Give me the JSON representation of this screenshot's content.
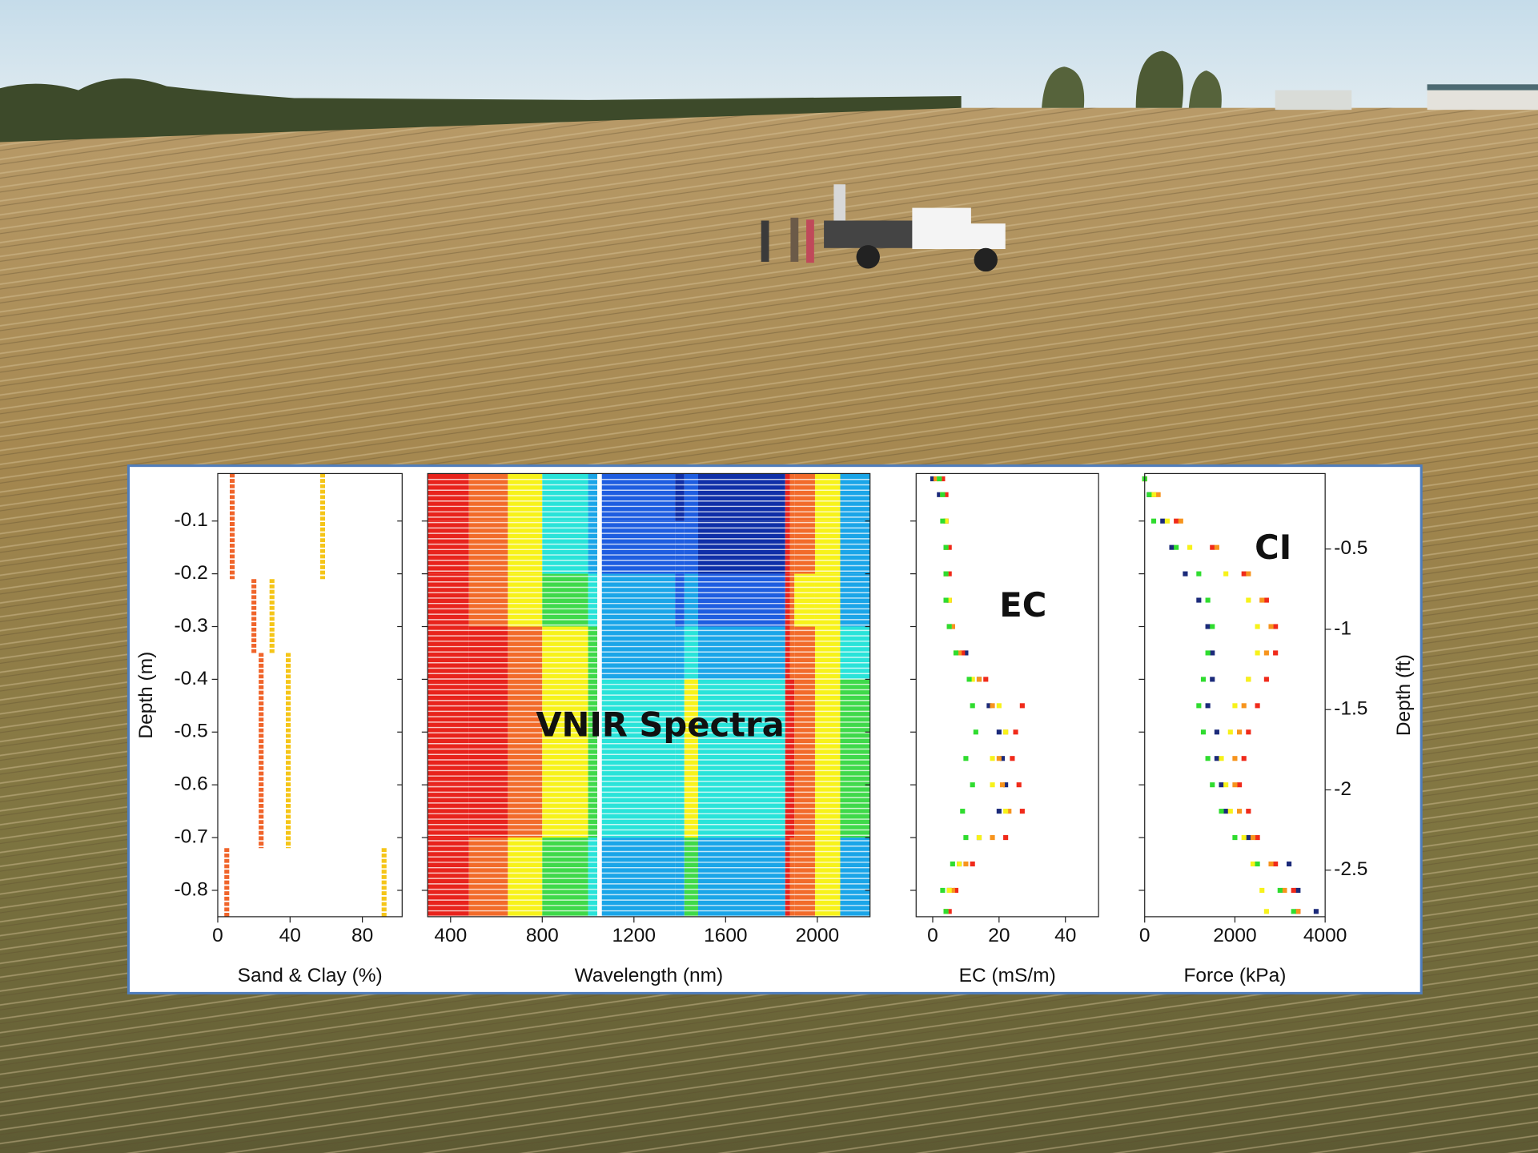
{
  "chart_data": [
    {
      "type": "step",
      "xlabel": "Sand & Clay (%)",
      "ylabel": "Depth (m)",
      "y_edges": [
        -0.01,
        -0.21,
        -0.35,
        -0.72,
        -0.85
      ],
      "series": [
        {
          "color": "#f0642a",
          "values": [
            8,
            20,
            24,
            5
          ]
        },
        {
          "color": "#f5c518",
          "values": [
            58,
            30,
            39,
            92
          ]
        }
      ],
      "xlim": [
        0,
        102
      ],
      "xticks": [
        0,
        40,
        80
      ],
      "ylim": [
        -0.85,
        -0.01
      ],
      "yticks": [
        -0.1,
        -0.2,
        -0.3,
        -0.4,
        -0.5,
        -0.6,
        -0.7,
        -0.8
      ]
    },
    {
      "type": "heatmap",
      "xlabel": "Wavelength (nm)",
      "annotation": "VNIR Spectra",
      "colormap": [
        "#e8231c",
        "#f26b2a",
        "#f7f21a",
        "#3fd94a",
        "#29e3d9",
        "#1aa5e8",
        "#1e5de0",
        "#0f2fa8"
      ],
      "x_bins": [
        300,
        480,
        650,
        800,
        1000,
        1040,
        1060,
        1380,
        1420,
        1480,
        1860,
        1880,
        1900,
        1990,
        2100,
        2230
      ],
      "y_bins": [
        -0.01,
        -0.1,
        -0.2,
        -0.3,
        -0.4,
        -0.5,
        -0.6,
        -0.7,
        -0.85
      ],
      "values": [
        [
          0,
          1,
          2,
          4,
          5,
          null,
          6,
          7,
          6,
          7,
          0,
          1,
          1,
          2,
          5
        ],
        [
          0,
          1,
          2,
          4,
          5,
          null,
          6,
          6,
          6,
          7,
          0,
          1,
          1,
          2,
          5
        ],
        [
          0,
          1,
          2,
          3,
          4,
          null,
          5,
          6,
          5,
          6,
          0,
          1,
          2,
          2,
          5
        ],
        [
          0,
          0,
          1,
          2,
          3,
          null,
          5,
          5,
          4,
          5,
          0,
          1,
          1,
          2,
          4
        ],
        [
          0,
          0,
          1,
          2,
          3,
          null,
          4,
          4,
          2,
          4,
          0,
          0,
          1,
          2,
          3
        ],
        [
          0,
          0,
          1,
          2,
          3,
          null,
          4,
          4,
          2,
          4,
          0,
          0,
          1,
          2,
          3
        ],
        [
          0,
          0,
          1,
          2,
          3,
          null,
          4,
          4,
          2,
          4,
          0,
          0,
          1,
          2,
          3
        ],
        [
          0,
          1,
          2,
          3,
          4,
          null,
          5,
          5,
          3,
          5,
          0,
          1,
          1,
          2,
          5
        ]
      ],
      "xlim": [
        300,
        2230
      ],
      "xticks": [
        400,
        800,
        1200,
        1600,
        2000
      ],
      "ylim": [
        -0.85,
        -0.01
      ],
      "yticks": [
        -0.1,
        -0.2,
        -0.3,
        -0.4,
        -0.5,
        -0.6,
        -0.7,
        -0.8
      ]
    },
    {
      "type": "scatter",
      "xlabel": "EC (mS/m)",
      "annotation": "EC",
      "y": [
        -0.02,
        -0.05,
        -0.1,
        -0.15,
        -0.2,
        -0.25,
        -0.3,
        -0.35,
        -0.4,
        -0.45,
        -0.5,
        -0.55,
        -0.6,
        -0.65,
        -0.7,
        -0.75,
        -0.8,
        -0.84
      ],
      "series": [
        {
          "color": "#1b2a7a",
          "values": [
            0,
            2,
            4,
            4,
            4,
            4,
            5,
            10,
            14,
            17,
            20,
            21,
            22,
            20,
            14,
            8,
            5,
            4
          ]
        },
        {
          "color": "#f02a1a",
          "values": [
            3,
            4,
            4,
            5,
            5,
            5,
            6,
            9,
            16,
            27,
            25,
            24,
            26,
            27,
            22,
            12,
            7,
            5
          ]
        },
        {
          "color": "#f7941d",
          "values": [
            1,
            3,
            4,
            4,
            4,
            5,
            6,
            8,
            14,
            18,
            22,
            20,
            21,
            23,
            18,
            10,
            6,
            4
          ]
        },
        {
          "color": "#f7f21a",
          "values": [
            2,
            3,
            4,
            4,
            4,
            5,
            5,
            7,
            12,
            20,
            22,
            18,
            18,
            22,
            14,
            8,
            5,
            4
          ]
        },
        {
          "color": "#2fdc2f",
          "values": [
            2,
            3,
            3,
            4,
            4,
            4,
            5,
            7,
            11,
            12,
            13,
            10,
            12,
            9,
            10,
            6,
            3,
            4
          ]
        }
      ],
      "xlim": [
        -5,
        50
      ],
      "xticks": [
        0,
        20,
        40
      ],
      "ylim": [
        -0.85,
        -0.01
      ],
      "yticks": [
        -0.1,
        -0.2,
        -0.3,
        -0.4,
        -0.5,
        -0.6,
        -0.7,
        -0.8
      ]
    },
    {
      "type": "scatter",
      "xlabel": "Force (kPa)",
      "annotation": "CI",
      "y2label": "Depth (ft)",
      "y": [
        -0.02,
        -0.05,
        -0.1,
        -0.15,
        -0.2,
        -0.25,
        -0.3,
        -0.35,
        -0.4,
        -0.45,
        -0.5,
        -0.55,
        -0.6,
        -0.65,
        -0.7,
        -0.75,
        -0.8,
        -0.84
      ],
      "series": [
        {
          "color": "#1b2a7a",
          "values": [
            0,
            100,
            400,
            600,
            900,
            1200,
            1400,
            1500,
            1500,
            1400,
            1600,
            1600,
            1700,
            1800,
            2300,
            3200,
            3400,
            3800
          ]
        },
        {
          "color": "#f02a1a",
          "values": [
            0,
            200,
            700,
            1500,
            2200,
            2700,
            2900,
            2900,
            2700,
            2500,
            2300,
            2200,
            2100,
            2300,
            2500,
            2900,
            3300,
            3400
          ]
        },
        {
          "color": "#f7941d",
          "values": [
            0,
            300,
            800,
            1600,
            2300,
            2600,
            2800,
            2700,
            2300,
            2200,
            2100,
            2000,
            2000,
            2100,
            2400,
            2800,
            3100,
            3400
          ]
        },
        {
          "color": "#f7f21a",
          "values": [
            0,
            200,
            500,
            1000,
            1800,
            2300,
            2500,
            2500,
            2300,
            2000,
            1900,
            1700,
            1800,
            1900,
            2200,
            2400,
            2600,
            2700
          ]
        },
        {
          "color": "#2fdc2f",
          "values": [
            0,
            100,
            200,
            700,
            1200,
            1400,
            1500,
            1400,
            1300,
            1200,
            1300,
            1400,
            1500,
            1700,
            2000,
            2500,
            3000,
            3300
          ]
        }
      ],
      "xlim": [
        0,
        4000
      ],
      "xticks": [
        0,
        2000,
        4000
      ],
      "ylim": [
        -0.85,
        -0.01
      ],
      "yticks": [
        -0.1,
        -0.2,
        -0.3,
        -0.4,
        -0.5,
        -0.6,
        -0.7,
        -0.8
      ],
      "y2lim": [
        -2.79,
        -0.03
      ],
      "y2ticks": [
        -0.5,
        -1,
        -1.5,
        -2,
        -2.5
      ]
    }
  ]
}
